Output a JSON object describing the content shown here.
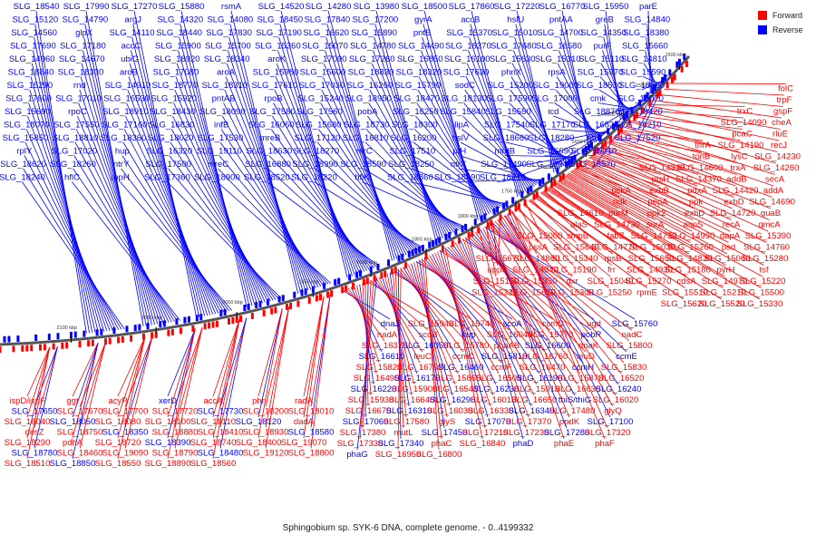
{
  "caption": "Sphingobium sp. SYK-6 DNA, complete genome. - 0..4199332",
  "legend": [
    {
      "label": "Forward",
      "color": "#ff0000"
    },
    {
      "label": "Reverse",
      "color": "#0000ff"
    }
  ],
  "colors": {
    "forward": "#ff0000",
    "reverse": "#0000ff",
    "backbone": "#555555"
  },
  "ticks": [
    "1500 kbp",
    "1550 kbp",
    "1600 kbp",
    "1650 kbp",
    "1700 kbp",
    "1750 kbp",
    "1800 kbp",
    "1850 kbp",
    "1900 kbp",
    "1950 kbp",
    "2000 kbp",
    "2050 kbp",
    "2100 kbp"
  ],
  "reverse_labels": [
    "SLG_18540",
    "SLG_17990",
    "SLG_17270",
    "SLG_15880",
    "rsmA",
    "SLG_14520",
    "SLG_14280",
    "SLG_13980",
    "SLG_18500",
    "SLG_17860",
    "SLG_17220",
    "SLG_16770",
    "SLG_15950",
    "parE",
    "SLG_15120",
    "SLG_14790",
    "argJ",
    "SLG_14320",
    "SLG_14080",
    "SLG_18450",
    "SLG_17840",
    "SLG_17200",
    "gyrA",
    "accB",
    "hslU",
    "pntAA",
    "greB",
    "SLG_14840",
    "SLG_14560",
    "glpX",
    "SLG_14110",
    "SLG_18440",
    "SLG_17830",
    "SLG_17190",
    "SLG_16620",
    "SLG_15890",
    "pntB",
    "SLG_15370",
    "SLG_15010",
    "SLG_14700",
    "SLG_14350",
    "SLG_18380",
    "SLG_17690",
    "SLG_17180",
    "accC",
    "SLG_15900",
    "SLG_15700",
    "SLG_15360",
    "SLG_15070",
    "SLG_14780",
    "SLG_14490",
    "SLG_18370",
    "SLG_17680",
    "SLG_16580",
    "purF",
    "SLG_15660",
    "SLG_14960",
    "SLG_14670",
    "ubiG",
    "SLG_18920",
    "SLG_18340",
    "aroK",
    "SLG_17090",
    "SLG_17260",
    "SLG_16850",
    "SLG_16100",
    "SLG_15630",
    "SLG_15310",
    "SLG_15110",
    "SLG_14810",
    "SLG_18840",
    "SLG_18330",
    "aroB",
    "SLG_17080",
    "aroA",
    "SLG_15980",
    "SLG_15600",
    "SLG_18830",
    "SLG_18320",
    "SLG_17630",
    "phnX",
    "rpsA",
    "SLG_15970",
    "SLG_15590",
    "SLG_15290",
    "rnd",
    "SLG_14910",
    "SLG_18770",
    "SLG_18310",
    "SLG_17610",
    "SLG_17030",
    "SLG_16260",
    "SLG_15790",
    "sodC",
    "SLG_15200",
    "SLG_19000",
    "SLG_18530",
    "SLG_18160",
    "SLG_17600",
    "SLG_17010",
    "SLG_16530",
    "SLG_15920",
    "pntAB",
    "rpoB",
    "SLG_15240",
    "SLG_18950",
    "SLG_18470",
    "SLG_18130",
    "SLG_17590",
    "SLG_17000",
    "cmk",
    "SLG_16070",
    "SLG_15690",
    "rpoC",
    "SLG_18910",
    "SLG_18430",
    "SLG_18090",
    "SLG_17580",
    "SLG_17560",
    "pobA",
    "SLG_16250",
    "SLG_15840",
    "SLG_15550",
    "icd",
    "SLG_18870",
    "SLG_18420",
    "SLG_18070",
    "SLG_17550",
    "SLG_17160",
    "SLG_16830",
    "infB",
    "SLG_16060",
    "SLG_15680",
    "SLG_18730",
    "SLG_18300",
    "lipA",
    "SLG_17540",
    "SLG_17170",
    "SLG_16820",
    "SLG_16210",
    "SLG_15850",
    "SLG_18810",
    "SLG_18360",
    "SLG_18020",
    "SLG_17530",
    "mreB",
    "SLG_17120",
    "SLG_16810",
    "SLG_16200",
    "hslV",
    "SLG_18660",
    "SLG_18280",
    "ntrB",
    "SLG_17520",
    "rplY",
    "SLG_17020",
    "hup",
    "SLG_16320",
    "SLG_19110",
    "SLG_18630",
    "SLG_18270",
    "ntrC",
    "SLG_17510",
    "ptH",
    "mrdB",
    "SLG_16690",
    "SLG_19010",
    "SLG_18620",
    "SLG_18260",
    "ntrY",
    "SLG_17500",
    "mreC",
    "SLG_16880",
    "SLG_18990",
    "SLG_18590",
    "SLG_18250",
    "ntrX",
    "SLG_17490",
    "SLG_18940",
    "SLG_18570",
    "SLG_18240",
    "hflC",
    "rppH",
    "SLG_17360",
    "SLG_18900",
    "SLG_18520",
    "SLG_18220",
    "hflK",
    "SLG_18860",
    "SLG_18490",
    "SLG_18210"
  ],
  "forward_labels_right": [
    "folC",
    "trpF",
    "gspF",
    "trxC",
    "cheA",
    "SLG_14090",
    "rluE",
    "pcaC",
    "recJ",
    "SLG_14190",
    "thrA",
    "SLG_14230",
    "lysC",
    "tonB",
    "SLG_14260",
    "trxA",
    "SLG_14600",
    "SLG_14330",
    "secA",
    "addB",
    "SLG_14370",
    "ptsH",
    "addA",
    "SLG_14420",
    "pdxA",
    "exbB",
    "pckA",
    "SLG_14690",
    "exbD",
    "ppk",
    "pepA",
    "ndk",
    "guaB",
    "SLG_14720",
    "exbD",
    "ppk2",
    "purM",
    "SLG_14610",
    "qmcA",
    "recA",
    "aspS",
    "surA",
    "SLG_14730",
    "alaS",
    "SLG_15390",
    "dapA",
    "SLG_14990",
    "SLG_14750",
    "fabZ",
    "smpB",
    "SLG_15000",
    "SLG_14760",
    "psd",
    "SLG_15260",
    "SLG_15030",
    "SLG_14770",
    "SLG_15640",
    "pssA",
    "SLG_15280",
    "SLG_15060",
    "SLG_14830",
    "SLG_15650",
    "rpsB",
    "SLG_15340",
    "SLG_14860",
    "SLG_15670",
    "tsf",
    "pyrH",
    "SLG_15180",
    "SLG_14930",
    "frr",
    "SLG_15190",
    "SLG_14940",
    "uppS",
    "SLG_15220",
    "SLG_14970",
    "cdsA",
    "SLG_15270",
    "SLG_15040",
    "dxr",
    "SLG_15350",
    "SLG_15150",
    "SLG_15500",
    "SLG_15210",
    "SLG_15510",
    "rpmE",
    "SLG_15250",
    "SLG_15300",
    "SLG_15610",
    "SLG_15320",
    "SLG_15330",
    "SLG_15520",
    "SLG_15620"
  ],
  "mixed_labels_bottom": [
    "dnaJ",
    "SLG_15940",
    "SLG_15740",
    "scoA",
    "ccmG",
    "ugd",
    "SLG_15760",
    "nadA",
    "scoB",
    "kup",
    "SLG_16040",
    "SLG_15770",
    "pobR",
    "nadC",
    "SLG_16370",
    "SLG_16050",
    "SLG_15780",
    "phaAB",
    "SLG_16600",
    "dnaK",
    "SLG_15800",
    "SLG_16610",
    "leuC",
    "ccmC",
    "SLG_15810",
    "SLG_16760",
    "leuD",
    "ccmE",
    "SLG_15820",
    "SLG_16790",
    "SLG_16460",
    "ccmF",
    "SLG_16470",
    "ccmH",
    "SLG_15830",
    "SLG_16490",
    "SLG_16170",
    "SLG_15860",
    "SLG_16500",
    "SLG_16190",
    "SLG_15870",
    "SLG_16520",
    "SLG_16220",
    "SLG_15900",
    "SLG_16540",
    "SLG_16230",
    "SLG_15910",
    "SLG_16630",
    "SLG_16240",
    "SLG_15930",
    "SLG_16640",
    "SLG_16290",
    "SLG_16010",
    "SLG_16650",
    "thiS/thiG",
    "SLG_16020",
    "SLG_16670",
    "SLG_16310",
    "SLG_16030",
    "SLG_16330",
    "SLG_16340",
    "SLG_17480",
    "glyQ",
    "SLG_17060",
    "SLG_17580",
    "glyS",
    "SLG_17070",
    "SLG_17370",
    "ppdK",
    "SLG_17100",
    "SLG_17380",
    "mutL",
    "SLG_17450",
    "SLG_17210",
    "SLG_17230",
    "SLG_17280",
    "SLG_17320",
    "SLG_17330",
    "SLG_17340",
    "phaC",
    "SLG_16840",
    "phaD",
    "phaE",
    "phaF",
    "phaG",
    "SLG_16950",
    "SLG_16800"
  ],
  "forward_labels_left": [
    "ispD/ispF",
    "ggt",
    "acyP",
    "xerD",
    "accA",
    "phr",
    "radA",
    "SLG_17650",
    "SLG_17670",
    "SLG_17700",
    "SLG_17720",
    "SLG_17730",
    "SLG_18200",
    "SLG_18010",
    "SLG_18040",
    "SLG_18050",
    "SLG_18080",
    "SLG_18100",
    "SLG_18110",
    "SLG_18120",
    "dadA",
    "desZ",
    "SLG_18750",
    "SLG_18350",
    "SLG_18880",
    "SLG_18410",
    "SLG_18930",
    "SLG_18580",
    "SLG_18290",
    "pdhA",
    "SLG_18720",
    "SLG_18390",
    "SLG_18740",
    "SLG_18400",
    "SLG_19070",
    "SLG_18780",
    "SLG_18460",
    "SLG_19090",
    "SLG_18790",
    "SLG_18480",
    "SLG_19120",
    "SLG_18800",
    "SLG_18510",
    "SLG_18850",
    "SLG_18550",
    "SLG_18890",
    "SLG_18560"
  ]
}
